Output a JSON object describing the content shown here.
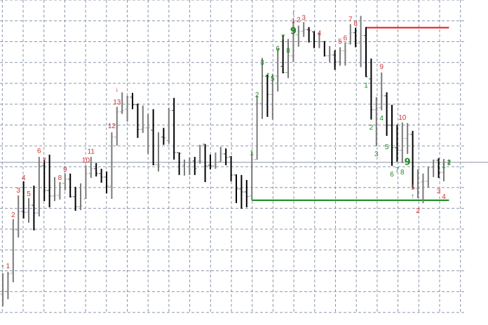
{
  "chart_data": {
    "type": "ohlc",
    "title": "",
    "xlabel": "",
    "ylabel": "",
    "ylim": [
      -0.6,
      15.0
    ],
    "grid": true,
    "colors": {
      "up_bar": "#7a7a7a",
      "down_bar": "#000000",
      "grid": "#8a96aa",
      "red_label": "#cc3333",
      "green_label": "#1f8a1f",
      "resistance_line": "#ee1111",
      "support_line": "#118811",
      "price_line": "#8a94a4"
    },
    "bars": [
      [
        0.88,
        1.89,
        0.3,
        1.01
      ],
      [
        1.01,
        1.95,
        0.64,
        1.85
      ],
      [
        1.89,
        4.48,
        1.45,
        3.97
      ],
      [
        3.97,
        5.62,
        3.6,
        4.85
      ],
      [
        4.85,
        6.3,
        4.51,
        4.81
      ],
      [
        4.81,
        5.49,
        4.31,
        5.15
      ],
      [
        5.15,
        6.09,
        3.94,
        4.78
      ],
      [
        4.78,
        7.47,
        4.61,
        7.04
      ],
      [
        7.04,
        7.34,
        5.35,
        5.86
      ],
      [
        5.86,
        7.58,
        5.05,
        5.59
      ],
      [
        5.59,
        6.5,
        5.35,
        5.62
      ],
      [
        5.62,
        6.26,
        5.42,
        6.2
      ],
      [
        6.2,
        6.67,
        5.86,
        6.4
      ],
      [
        6.4,
        6.67,
        5.52,
        5.56
      ],
      [
        5.56,
        6.03,
        4.88,
        5.08
      ],
      [
        5.08,
        6.2,
        4.92,
        5.12
      ],
      [
        5.45,
        7.07,
        5.45,
        6.67
      ],
      [
        6.67,
        7.47,
        6.46,
        6.9
      ],
      [
        6.9,
        7.17,
        6.53,
        6.67
      ],
      [
        6.67,
        6.9,
        6.23,
        6.5
      ],
      [
        6.5,
        6.77,
        5.72,
        6.06
      ],
      [
        6.06,
        8.65,
        5.45,
        8.42
      ],
      [
        8.42,
        9.87,
        8.01,
        9.63
      ],
      [
        9.63,
        10.57,
        9.53,
        9.7
      ],
      [
        9.76,
        10.4,
        9.16,
        10.34
      ],
      [
        10.34,
        10.54,
        9.76,
        9.97
      ],
      [
        9.97,
        10.03,
        8.38,
        8.79
      ],
      [
        8.79,
        9.93,
        8.62,
        8.86
      ],
      [
        8.86,
        9.53,
        7.61,
        8.86
      ],
      [
        8.75,
        9.76,
        7.07,
        7.1
      ],
      [
        7.1,
        8.65,
        6.77,
        7.1
      ],
      [
        8.42,
        8.86,
        8.05,
        8.38
      ],
      [
        8.25,
        9.83,
        8.11,
        9.7
      ],
      [
        9.7,
        10.3,
        7.34,
        7.68
      ],
      [
        7.68,
        7.68,
        6.6,
        7.64
      ],
      [
        7.07,
        7.34,
        6.57,
        7.21
      ],
      [
        7.21,
        7.44,
        6.6,
        7.21
      ],
      [
        7.27,
        7.47,
        6.6,
        6.9
      ],
      [
        7.27,
        8.05,
        7.14,
        7.27
      ],
      [
        8.08,
        8.08,
        6.26,
        7.04
      ],
      [
        7.07,
        7.58,
        6.87,
        7.04
      ],
      [
        7.04,
        7.68,
        6.9,
        7.21
      ],
      [
        7.24,
        7.95,
        7.24,
        7.61
      ],
      [
        7.61,
        7.88,
        7.07,
        7.44
      ],
      [
        7.47,
        7.51,
        6.3,
        6.6
      ],
      [
        6.6,
        6.63,
        5.25,
        5.93
      ],
      [
        5.93,
        6.6,
        4.98,
        5.79
      ],
      [
        5.79,
        6.36,
        5.05,
        5.56
      ],
      [
        5.59,
        7.71,
        5.39,
        7.34
      ],
      [
        7.34,
        10.4,
        7.34,
        10.03
      ],
      [
        10.03,
        12.22,
        9.29,
        11.35
      ],
      [
        11.35,
        11.41,
        9.39,
        10.47
      ],
      [
        10.47,
        11.45,
        9.26,
        11.35
      ],
      [
        11.35,
        12.66,
        10.61,
        12.66
      ],
      [
        11.82,
        13.3,
        11.48,
        11.52
      ],
      [
        11.52,
        13.13,
        11.25,
        12.32
      ],
      [
        12.32,
        14.01,
        12.02,
        13.33
      ],
      [
        13.33,
        13.77,
        12.76,
        13.5
      ],
      [
        13.5,
        13.94,
        13.23,
        13.57
      ],
      [
        13.57,
        13.7,
        12.96,
        13.54
      ],
      [
        13.47,
        13.5,
        12.69,
        13.0
      ],
      [
        13.0,
        13.43,
        12.69,
        13.0
      ],
      [
        13.0,
        13.03,
        12.29,
        12.32
      ],
      [
        12.32,
        12.79,
        12.02,
        12.36
      ],
      [
        12.36,
        12.59,
        11.65,
        12.02
      ],
      [
        12.05,
        12.73,
        11.85,
        12.56
      ],
      [
        12.56,
        12.96,
        11.85,
        12.93
      ],
      [
        12.93,
        13.84,
        12.86,
        13.43
      ],
      [
        13.43,
        13.67,
        12.73,
        12.93
      ],
      [
        12.93,
        14.24,
        11.78,
        13.3
      ],
      [
        13.3,
        13.7,
        11.31,
        11.31
      ],
      [
        11.21,
        12.19,
        9.26,
        9.73
      ],
      [
        9.73,
        10.34,
        7.98,
        9.83
      ],
      [
        9.83,
        11.52,
        9.7,
        10.4
      ],
      [
        10.4,
        10.57,
        8.48,
        8.99
      ],
      [
        8.99,
        9.97,
        7.04,
        7.91
      ],
      [
        7.91,
        9.02,
        7.24,
        7.78
      ],
      [
        7.78,
        9.12,
        7.17,
        8.35
      ],
      [
        8.35,
        9.09,
        7.61,
        8.55
      ],
      [
        8.55,
        8.72,
        5.96,
        5.96
      ],
      [
        5.96,
        6.87,
        5.49,
        6.83
      ],
      [
        6.26,
        6.67,
        5.25,
        6.3
      ],
      [
        6.3,
        6.97,
        5.99,
        6.97
      ],
      [
        6.97,
        7.34,
        6.5,
        7.31
      ],
      [
        7.31,
        7.41,
        6.46,
        6.73
      ],
      [
        6.73,
        7.37,
        6.3,
        7.21
      ],
      [
        7.21,
        7.34,
        7.07,
        7.21
      ]
    ],
    "bar_fields": [
      "open",
      "high",
      "low",
      "close"
    ],
    "lines": [
      {
        "kind": "resistance",
        "level": 13.67,
        "from_bar": 70,
        "to_bar": 86,
        "color": "#ee1111"
      },
      {
        "kind": "support",
        "level": 5.39,
        "from_bar": 48,
        "to_bar": 86,
        "color": "#118811"
      },
      {
        "kind": "price",
        "level": 7.21,
        "full_width": true,
        "color": "#8a94a4"
      }
    ],
    "annotations": [
      {
        "bar": 0,
        "text": "↑",
        "color": "green",
        "y": 2.22,
        "small": true
      },
      {
        "bar": 1,
        "text": "1",
        "color": "red",
        "y": 2.26
      },
      {
        "bar": 2,
        "text": "2",
        "color": "red",
        "y": 4.71
      },
      {
        "bar": 3,
        "text": "3",
        "color": "red",
        "y": 5.89
      },
      {
        "bar": 4,
        "text": "4",
        "color": "red",
        "y": 6.5
      },
      {
        "bar": 5,
        "text": "5",
        "color": "red",
        "y": 5.72
      },
      {
        "bar": 7,
        "text": "6",
        "color": "red",
        "y": 7.78
      },
      {
        "bar": 8,
        "text": "7",
        "color": "red",
        "y": 7.31
      },
      {
        "bar": 11,
        "text": "8",
        "color": "red",
        "y": 6.5
      },
      {
        "bar": 12,
        "text": "9",
        "color": "red",
        "y": 6.9
      },
      {
        "bar": 16,
        "text": "10",
        "color": "red",
        "y": 7.34
      },
      {
        "bar": 17,
        "text": "11",
        "color": "red",
        "y": 7.71
      },
      {
        "bar": 21,
        "text": "12",
        "color": "red",
        "y": 8.99
      },
      {
        "bar": 22,
        "text": "13",
        "color": "red",
        "y": 10.13
      },
      {
        "bar": 22,
        "text": "↓",
        "color": "red",
        "y": 10.74
      },
      {
        "bar": 48,
        "text": "1",
        "color": "green",
        "y": 7.68
      },
      {
        "bar": 49,
        "text": "2",
        "color": "green",
        "y": 10.47
      },
      {
        "bar": 50,
        "text": "3",
        "color": "green",
        "y": 12.02
      },
      {
        "bar": 51,
        "text": "4",
        "color": "green",
        "y": 11.41
      },
      {
        "bar": 52,
        "text": "5",
        "color": "green",
        "y": 11.25
      },
      {
        "bar": 53,
        "text": "6",
        "color": "green",
        "y": 12.69
      },
      {
        "bar": 54,
        "text": "7",
        "color": "green",
        "y": 13.23
      },
      {
        "bar": 55,
        "text": "8",
        "color": "green",
        "y": 12.59
      },
      {
        "bar": 56,
        "text": "9",
        "color": "green",
        "y": 13.5,
        "big": true
      },
      {
        "bar": 56,
        "text": "1",
        "color": "red",
        "y": 13.8
      },
      {
        "bar": 56,
        "text": "↓",
        "color": "green",
        "y": 13.97
      },
      {
        "bar": 57,
        "text": "2",
        "color": "red",
        "y": 14.07
      },
      {
        "bar": 58,
        "text": "3",
        "color": "red",
        "y": 14.18
      },
      {
        "bar": 61,
        "text": "4",
        "color": "red",
        "y": 13.43
      },
      {
        "bar": 65,
        "text": "5",
        "color": "red",
        "y": 13.03
      },
      {
        "bar": 66,
        "text": "6",
        "color": "red",
        "y": 13.2
      },
      {
        "bar": 67,
        "text": "7",
        "color": "red",
        "y": 14.11
      },
      {
        "bar": 68,
        "text": "8",
        "color": "red",
        "y": 13.91
      },
      {
        "bar": 70,
        "text": "1",
        "color": "green",
        "y": 10.94
      },
      {
        "bar": 71,
        "text": "2",
        "color": "green",
        "y": 8.92
      },
      {
        "bar": 72,
        "text": "3",
        "color": "green",
        "y": 7.64
      },
      {
        "bar": 73,
        "text": "9",
        "color": "red",
        "y": 11.82
      },
      {
        "bar": 73,
        "text": "4",
        "color": "green",
        "y": 9.36
      },
      {
        "bar": 74,
        "text": "5",
        "color": "green",
        "y": 7.98
      },
      {
        "bar": 75,
        "text": "6",
        "color": "green",
        "y": 6.67
      },
      {
        "bar": 76,
        "text": "7",
        "color": "green",
        "y": 6.87
      },
      {
        "bar": 77,
        "text": "10",
        "color": "red",
        "y": 9.39
      },
      {
        "bar": 77,
        "text": "8",
        "color": "green",
        "y": 6.77
      },
      {
        "bar": 78,
        "text": "9",
        "color": "green",
        "y": 7.17,
        "big": true
      },
      {
        "bar": 79,
        "text": "↑",
        "color": "green",
        "y": 5.62
      },
      {
        "bar": 79,
        "text": "1",
        "color": "red",
        "y": 5.25
      },
      {
        "bar": 80,
        "text": "2",
        "color": "red",
        "y": 4.92
      },
      {
        "bar": 84,
        "text": "3",
        "color": "red",
        "y": 5.86
      },
      {
        "bar": 85,
        "text": "4",
        "color": "red",
        "y": 5.59
      },
      {
        "bar": 85,
        "text": "1",
        "color": "green",
        "y": 7.07
      },
      {
        "bar": 86,
        "text": "2",
        "color": "green",
        "y": 7.24
      }
    ]
  }
}
